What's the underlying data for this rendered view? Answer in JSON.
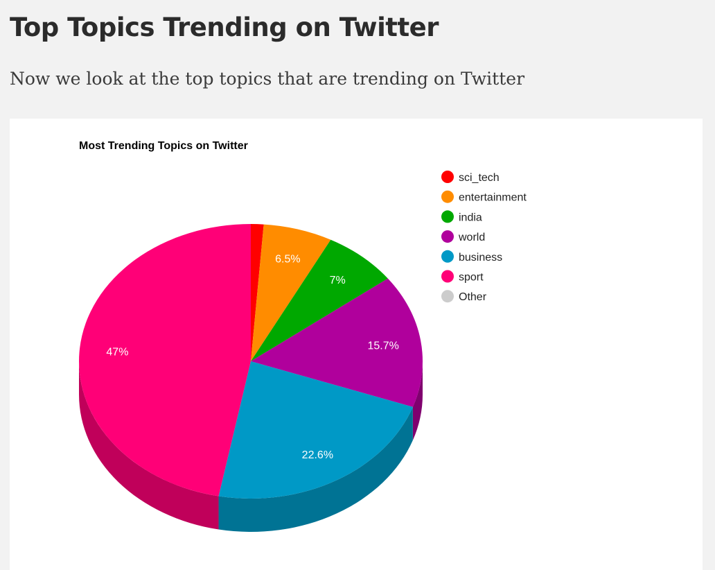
{
  "page": {
    "title": "Top Topics Trending on Twitter",
    "subtitle": "Now we look at the top topics that are trending on Twitter"
  },
  "chart_data": {
    "type": "pie",
    "title": "Most Trending Topics on Twitter",
    "style": "3d",
    "legend_position": "right",
    "slices": [
      {
        "label": "sci_tech",
        "value": 1.2,
        "display": "",
        "color": "#ff0000",
        "side_color": "#c00000"
      },
      {
        "label": "entertainment",
        "value": 6.5,
        "display": "6.5%",
        "color": "#ff8c00",
        "side_color": "#c26a00"
      },
      {
        "label": "india",
        "value": 7.0,
        "display": "7%",
        "color": "#00a800",
        "side_color": "#007f00"
      },
      {
        "label": "world",
        "value": 15.7,
        "display": "15.7%",
        "color": "#b0009c",
        "side_color": "#80006f"
      },
      {
        "label": "business",
        "value": 22.6,
        "display": "22.6%",
        "color": "#0099c6",
        "side_color": "#007394"
      },
      {
        "label": "sport",
        "value": 47.0,
        "display": "47%",
        "color": "#ff0077",
        "side_color": "#c0005a"
      },
      {
        "label": "Other",
        "value": 0,
        "display": "",
        "color": "#cccccc",
        "side_color": "#999999"
      }
    ]
  }
}
